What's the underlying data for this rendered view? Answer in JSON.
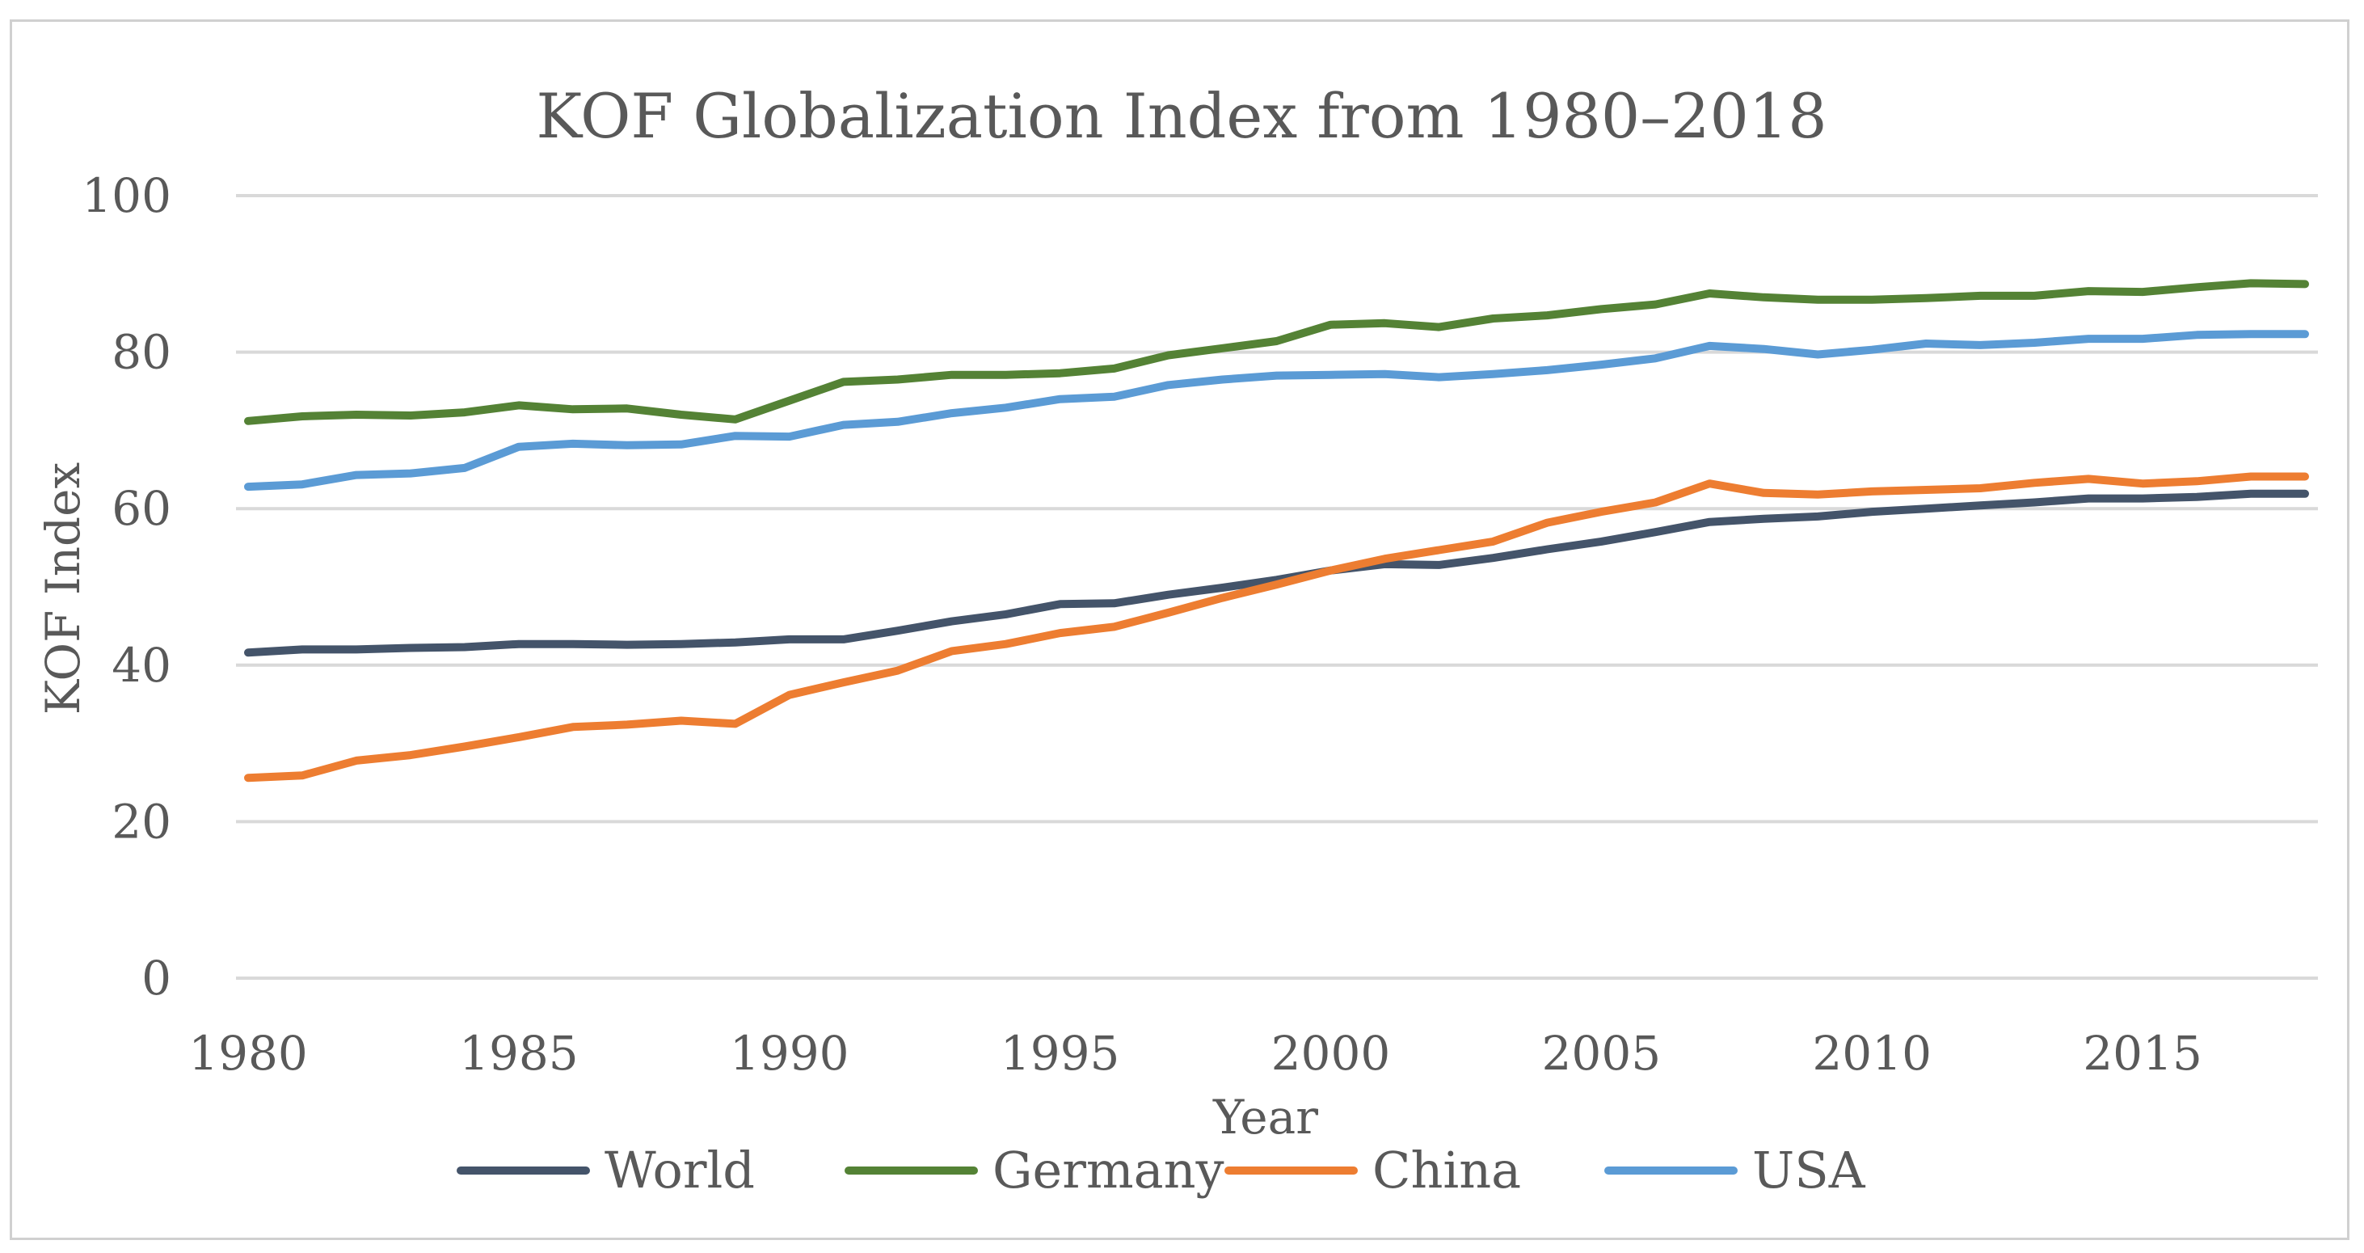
{
  "chart_data": {
    "type": "line",
    "title": "KOF Globalization Index from 1980–2018",
    "xlabel": "Year",
    "ylabel": "KOF Index",
    "ylim": [
      0,
      100
    ],
    "yticks": [
      "0",
      "20",
      "40",
      "60",
      "80",
      "100"
    ],
    "xticks": [
      "1980",
      "1985",
      "1990",
      "1995",
      "2000",
      "2005",
      "2010",
      "2015"
    ],
    "grid": true,
    "legend_position": "bottom",
    "x": [
      1980,
      1981,
      1982,
      1983,
      1984,
      1985,
      1986,
      1987,
      1988,
      1989,
      1990,
      1991,
      1992,
      1993,
      1994,
      1995,
      1996,
      1997,
      1998,
      1999,
      2000,
      2001,
      2002,
      2003,
      2004,
      2005,
      2006,
      2007,
      2008,
      2009,
      2010,
      2011,
      2012,
      2013,
      2014,
      2015,
      2016,
      2017,
      2018
    ],
    "series": [
      {
        "name": "World",
        "color": "#44546a",
        "values": [
          41.6,
          42.0,
          42.0,
          42.2,
          42.3,
          42.7,
          42.7,
          42.6,
          42.7,
          42.9,
          43.3,
          43.3,
          44.4,
          45.6,
          46.5,
          47.8,
          47.9,
          49.0,
          49.9,
          50.9,
          52.1,
          52.9,
          52.8,
          53.7,
          54.8,
          55.8,
          57.0,
          58.3,
          58.7,
          59.0,
          59.6,
          60.0,
          60.4,
          60.8,
          61.3,
          61.3,
          61.5,
          61.9,
          61.9
        ]
      },
      {
        "name": "Germany",
        "color": "#548235",
        "values": [
          71.2,
          71.8,
          72.0,
          71.9,
          72.3,
          73.2,
          72.7,
          72.8,
          72.0,
          71.4,
          73.8,
          76.2,
          76.5,
          77.1,
          77.1,
          77.3,
          77.9,
          79.6,
          80.5,
          81.4,
          83.5,
          83.7,
          83.2,
          84.3,
          84.7,
          85.5,
          86.1,
          87.5,
          87.0,
          86.7,
          86.7,
          86.9,
          87.2,
          87.2,
          87.8,
          87.7,
          88.3,
          88.8,
          88.7
        ]
      },
      {
        "name": "China",
        "color": "#ed7d31",
        "values": [
          25.6,
          25.9,
          27.8,
          28.5,
          29.6,
          30.8,
          32.1,
          32.4,
          32.9,
          32.5,
          36.2,
          37.8,
          39.3,
          41.8,
          42.7,
          44.1,
          44.9,
          46.7,
          48.6,
          50.3,
          52.1,
          53.6,
          54.7,
          55.8,
          58.2,
          59.6,
          60.8,
          63.2,
          62.0,
          61.8,
          62.2,
          62.4,
          62.6,
          63.3,
          63.8,
          63.2,
          63.5,
          64.1,
          64.1
        ]
      },
      {
        "name": "USA",
        "color": "#5b9bd5",
        "values": [
          62.8,
          63.1,
          64.3,
          64.5,
          65.2,
          67.9,
          68.3,
          68.1,
          68.2,
          69.3,
          69.2,
          70.7,
          71.1,
          72.2,
          72.9,
          74.0,
          74.3,
          75.8,
          76.5,
          77.0,
          77.1,
          77.2,
          76.8,
          77.2,
          77.7,
          78.4,
          79.2,
          80.8,
          80.4,
          79.7,
          80.3,
          81.1,
          80.9,
          81.2,
          81.7,
          81.7,
          82.2,
          82.3,
          82.3
        ]
      }
    ]
  }
}
